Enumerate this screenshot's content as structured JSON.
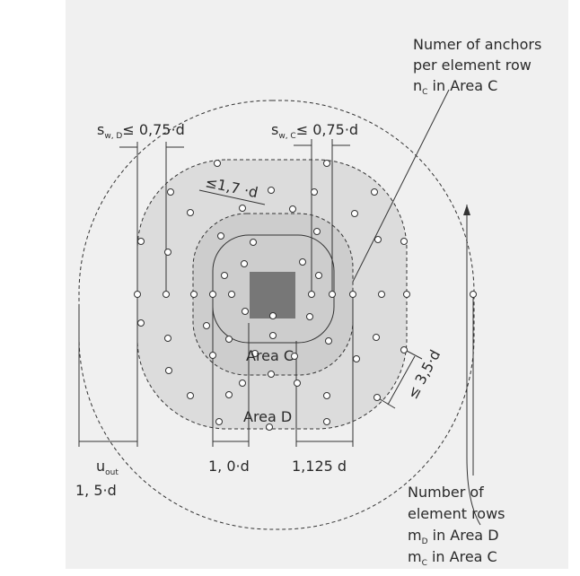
{
  "annotation_top": {
    "line1": "Numer of anchors",
    "line2": "per element row",
    "line3": {
      "base": "n",
      "sub": "C",
      "rest": " in Area C"
    }
  },
  "sw_d": {
    "base": "s",
    "sub": "w, D",
    "rest": "≤ 0,75·d"
  },
  "sw_c": {
    "base": "s",
    "sub": "w, C",
    "rest": "≤ 0,75·d"
  },
  "spacing_label": "≤1,7 ·d",
  "area_c": "Area C",
  "area_d": "Area D",
  "diag_label": "≤ 3,5·d",
  "u_out": {
    "base": "u",
    "sub": "out",
    "line2": "1, 5·d"
  },
  "dim_1": "1, 0·d",
  "dim_2": "1,125 d",
  "annotation_bottom": {
    "line1": "Number of",
    "line2": "element rows",
    "line3": {
      "base": "m",
      "sub": "D",
      "rest": " in Area D"
    },
    "line4": {
      "base": "m",
      "sub": "C",
      "rest": " in Area C"
    }
  }
}
